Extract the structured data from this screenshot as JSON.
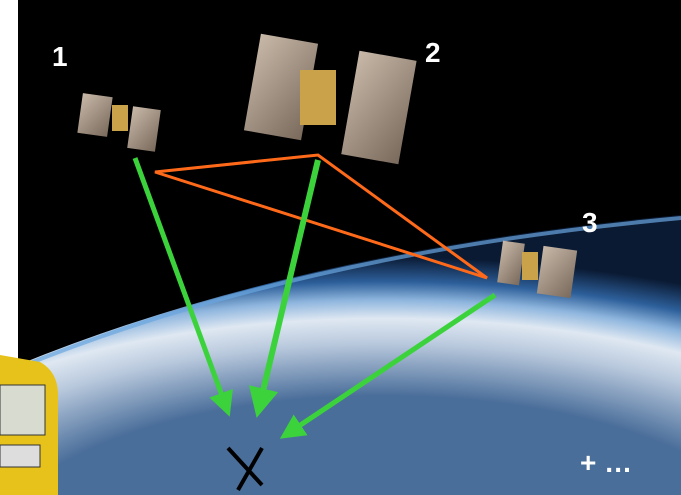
{
  "labels": [
    "1",
    "2",
    "3"
  ],
  "more": "+ …"
}
